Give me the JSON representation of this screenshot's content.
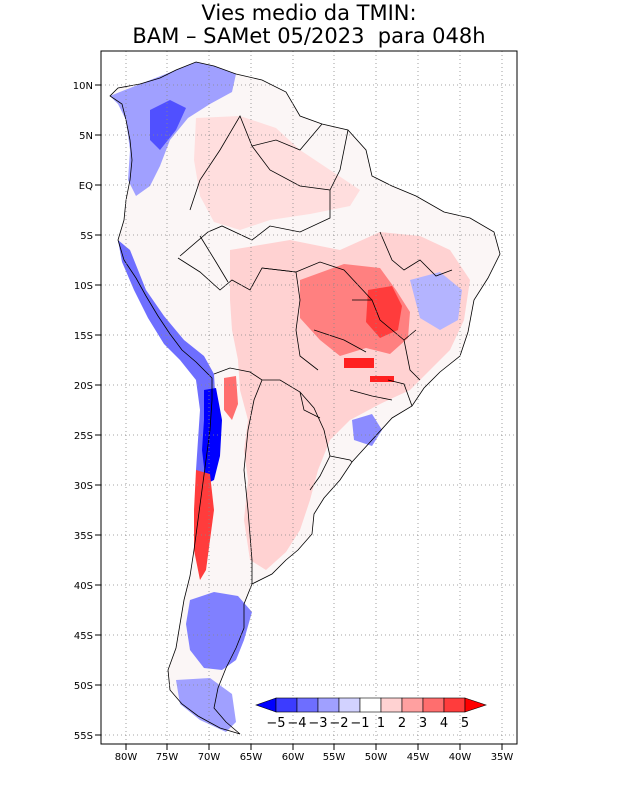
{
  "title": {
    "line1": "Vies medio da TMIN:",
    "line2": "BAM – SAMet 05/2023  para 048h"
  },
  "map": {
    "lon_labels": [
      "80W",
      "75W",
      "70W",
      "65W",
      "60W",
      "55W",
      "50W",
      "45W",
      "40W",
      "35W"
    ],
    "lat_labels": [
      "10N",
      "5N",
      "EQ",
      "5S",
      "10S",
      "15S",
      "20S",
      "25S",
      "30S",
      "35S",
      "40S",
      "45S",
      "50S",
      "55S"
    ],
    "lon_range": [
      -83,
      -34
    ],
    "lat_range": [
      13,
      -56
    ],
    "grid": true
  },
  "colorbar": {
    "labels": [
      "−5",
      "−4",
      "−3",
      "−2",
      "−1",
      "1",
      "2",
      "3",
      "4",
      "5"
    ],
    "colors": [
      "#0000ff",
      "#3c3cff",
      "#6e6eff",
      "#a0a0ff",
      "#d2d2ff",
      "#ffffff",
      "#ffd2d2",
      "#ffa0a0",
      "#ff6e6e",
      "#ff3c3c",
      "#ff0000"
    ]
  }
}
